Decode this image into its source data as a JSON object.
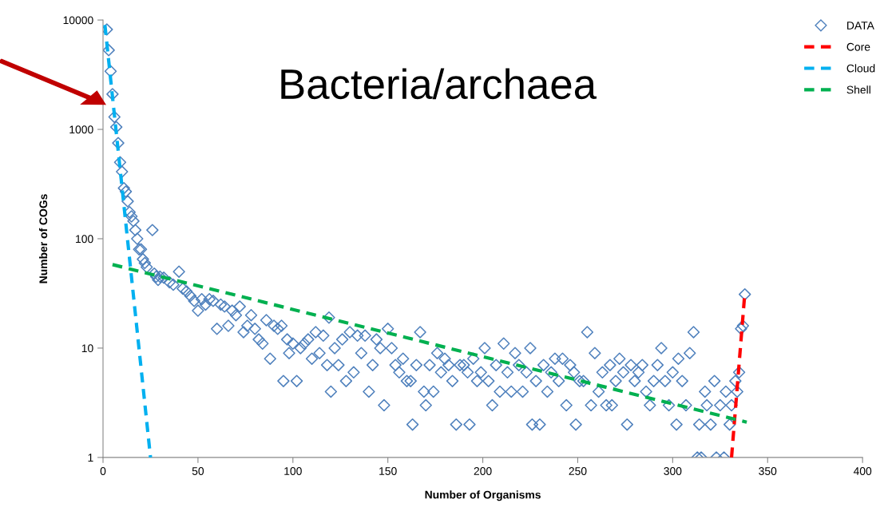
{
  "chart_data": {
    "type": "scatter",
    "title": "Bacteria/archaea",
    "xlabel": "Number of Organisms",
    "ylabel": "Number of COGs",
    "log": "y",
    "xlim": [
      0,
      400
    ],
    "xticks": [
      0,
      50,
      100,
      150,
      200,
      250,
      300,
      350,
      400
    ],
    "ylim": [
      1,
      10000
    ],
    "yticks": [
      1,
      10,
      100,
      1000,
      10000
    ],
    "grid": false,
    "legend": "top right",
    "series": [
      {
        "name": "DATA",
        "marker": "diamond",
        "color": "#4f81bd",
        "x": [
          2,
          3,
          4,
          5,
          6,
          7,
          8,
          9,
          10,
          11,
          12,
          13,
          14,
          15,
          16,
          17,
          18,
          19,
          20,
          21,
          22,
          23,
          26,
          27,
          28,
          29,
          30,
          32,
          35,
          37,
          40,
          42,
          44,
          46,
          48,
          50,
          52,
          54,
          56,
          58,
          60,
          62,
          64,
          66,
          68,
          70,
          72,
          74,
          76,
          78,
          80,
          82,
          84,
          86,
          88,
          90,
          92,
          94,
          95,
          97,
          98,
          100,
          102,
          104,
          106,
          108,
          110,
          112,
          114,
          116,
          118,
          119,
          120,
          122,
          124,
          126,
          128,
          130,
          132,
          134,
          136,
          138,
          140,
          142,
          144,
          146,
          148,
          150,
          152,
          154,
          156,
          158,
          160,
          162,
          163,
          165,
          167,
          169,
          170,
          172,
          174,
          176,
          178,
          180,
          182,
          184,
          186,
          188,
          190,
          192,
          193,
          195,
          197,
          199,
          201,
          203,
          205,
          207,
          209,
          211,
          213,
          215,
          217,
          219,
          221,
          223,
          225,
          226,
          228,
          230,
          232,
          234,
          236,
          238,
          240,
          242,
          244,
          246,
          248,
          249,
          251,
          253,
          255,
          257,
          259,
          261,
          263,
          265,
          267,
          268,
          270,
          272,
          274,
          276,
          278,
          280,
          282,
          284,
          286,
          288,
          290,
          292,
          294,
          296,
          298,
          300,
          302,
          303,
          305,
          307,
          309,
          311,
          313,
          314,
          315,
          317,
          318,
          320,
          322,
          323,
          325,
          327,
          328,
          330,
          331,
          333,
          334,
          335,
          336,
          337,
          338
        ],
        "values": [
          8200,
          5300,
          3400,
          2100,
          1300,
          1050,
          750,
          500,
          410,
          290,
          270,
          220,
          175,
          160,
          145,
          120,
          100,
          80,
          80,
          65,
          60,
          55,
          120,
          48,
          45,
          42,
          45,
          44,
          40,
          38,
          50,
          35,
          33,
          30,
          27,
          22,
          28,
          25,
          28,
          27,
          15,
          25,
          24,
          16,
          22,
          20,
          24,
          14,
          16,
          20,
          15,
          12,
          11,
          18,
          8,
          16,
          15,
          16,
          5,
          12,
          9,
          11,
          5,
          10,
          11,
          12,
          8,
          14,
          9,
          13,
          7,
          19,
          4,
          10,
          7,
          12,
          5,
          14,
          6,
          13,
          9,
          13,
          4,
          7,
          12,
          10,
          3,
          15,
          10,
          7,
          6,
          8,
          5,
          5,
          2,
          7,
          14,
          4,
          3,
          7,
          4,
          9,
          6,
          8,
          7,
          5,
          2,
          7,
          7,
          6,
          2,
          8,
          5,
          6,
          10,
          5,
          3,
          7,
          4,
          11,
          6,
          4,
          9,
          7,
          4,
          6,
          10,
          2,
          5,
          2,
          7,
          4,
          6,
          8,
          5,
          8,
          3,
          7,
          6,
          2,
          5,
          5,
          14,
          3,
          9,
          4,
          6,
          3,
          7,
          3,
          5,
          8,
          6,
          2,
          7,
          5,
          6,
          7,
          4,
          3,
          5,
          7,
          10,
          5,
          3,
          6,
          2,
          8,
          5,
          3,
          9,
          14,
          1,
          2,
          1,
          4,
          3,
          2,
          5,
          1,
          3,
          1,
          4,
          2,
          3,
          5,
          4,
          6,
          15,
          16,
          31
        ]
      },
      {
        "name": "Core",
        "type": "line",
        "line_style": "dashed",
        "marker": "none",
        "color": "#ff0000",
        "x": [
          331,
          338
        ],
        "values": [
          1,
          32
        ]
      },
      {
        "name": "Cloud",
        "type": "line",
        "line_style": "dashed",
        "marker": "none",
        "color": "#00b0f0",
        "x": [
          1,
          25
        ],
        "values": [
          9000,
          1
        ]
      },
      {
        "name": "Shell",
        "type": "line",
        "line_style": "dashed",
        "marker": "none",
        "color": "#00b050",
        "x": [
          5,
          339
        ],
        "values": [
          58,
          2.1
        ]
      }
    ]
  }
}
